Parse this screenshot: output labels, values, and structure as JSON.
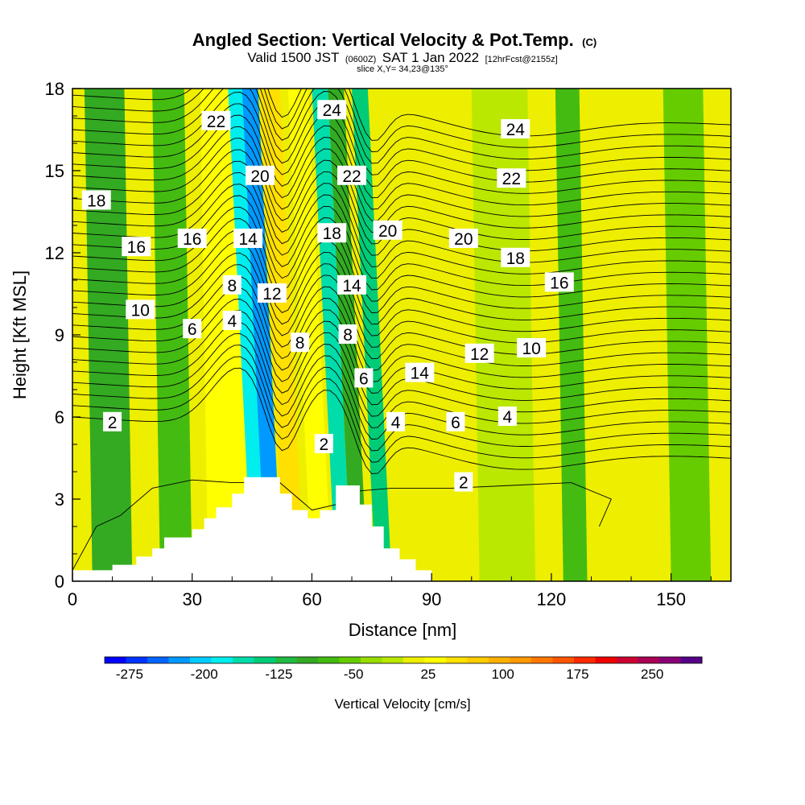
{
  "title": {
    "main": "Angled Section: Vertical Velocity & Pot.Temp.",
    "main_suffix": "(C)",
    "line2_a": "Valid 1500 JST",
    "line2_b": "(0600Z)",
    "line2_c": "SAT 1 Jan 2022",
    "line2_d": "[12hrFcst@2155z]",
    "line3": "slice X,Y= 34,23@135°"
  },
  "chart_data": {
    "type": "heatmap",
    "xlabel": "Distance [nm]",
    "ylabel": "Height [Kft MSL]",
    "xlim": [
      0,
      165
    ],
    "ylim": [
      0,
      18
    ],
    "x_ticks": [
      0,
      30,
      60,
      90,
      120,
      150
    ],
    "y_ticks": [
      0,
      3,
      6,
      9,
      12,
      15,
      18
    ],
    "colorbar": {
      "label": "Vertical Velocity [cm/s]",
      "tick_values": [
        -275,
        -200,
        -125,
        -50,
        25,
        100,
        175,
        250
      ],
      "tick_labels": [
        "-275",
        "-200",
        "-125",
        "-50",
        "25",
        "100",
        "175",
        "250"
      ],
      "range": [
        -300,
        275
      ],
      "step": 25,
      "colors": [
        "#0000ff",
        "#0033ff",
        "#0066ff",
        "#0099ff",
        "#00ccff",
        "#00eeee",
        "#00ddaa",
        "#00cc77",
        "#22bb44",
        "#33aa22",
        "#44bb11",
        "#66cc00",
        "#99dd00",
        "#bbe800",
        "#eeee00",
        "#ffff00",
        "#ffe000",
        "#ffcc00",
        "#ffb000",
        "#ff9900",
        "#ff7700",
        "#ff5500",
        "#ff2a00",
        "#ee0000",
        "#cc0033",
        "#aa0055",
        "#880077",
        "#550088"
      ]
    },
    "velocity_bands": [
      {
        "x": 5,
        "width": 10,
        "value": -60
      },
      {
        "x": 22,
        "width": 8,
        "value": -40
      },
      {
        "x": 34,
        "width": 10,
        "value": 80
      },
      {
        "x": 45,
        "width": 5,
        "value": -160
      },
      {
        "x": 48.5,
        "width": 4,
        "value": -220
      },
      {
        "x": 53,
        "width": 5,
        "value": 120
      },
      {
        "x": 60,
        "width": 5,
        "value": 90
      },
      {
        "x": 66,
        "width": 4,
        "value": -140
      },
      {
        "x": 70,
        "width": 4,
        "value": -60
      },
      {
        "x": 76,
        "width": 4,
        "value": -120
      },
      {
        "x": 84,
        "width": 8,
        "value": 70
      },
      {
        "x": 102,
        "width": 14,
        "value": 40
      },
      {
        "x": 123,
        "width": 6,
        "value": -50
      },
      {
        "x": 150,
        "width": 10,
        "value": -20
      }
    ],
    "terrain": [
      [
        0,
        0.4
      ],
      [
        10,
        0.4
      ],
      [
        10,
        0.6
      ],
      [
        16,
        0.6
      ],
      [
        16,
        0.9
      ],
      [
        20,
        0.9
      ],
      [
        20,
        1.2
      ],
      [
        23,
        1.2
      ],
      [
        23,
        1.6
      ],
      [
        30,
        1.6
      ],
      [
        30,
        1.9
      ],
      [
        33,
        1.9
      ],
      [
        33,
        2.3
      ],
      [
        36,
        2.3
      ],
      [
        36,
        2.7
      ],
      [
        40,
        2.7
      ],
      [
        40,
        3.2
      ],
      [
        43,
        3.2
      ],
      [
        43,
        3.8
      ],
      [
        52,
        3.8
      ],
      [
        52,
        3.2
      ],
      [
        55,
        3.2
      ],
      [
        55,
        2.6
      ],
      [
        59,
        2.6
      ],
      [
        59,
        2.3
      ],
      [
        62,
        2.3
      ],
      [
        62,
        2.6
      ],
      [
        66,
        2.6
      ],
      [
        66,
        3.5
      ],
      [
        72,
        3.5
      ],
      [
        72,
        2.8
      ],
      [
        75,
        2.8
      ],
      [
        75,
        2.0
      ],
      [
        78,
        2.0
      ],
      [
        78,
        1.2
      ],
      [
        82,
        1.2
      ],
      [
        82,
        0.8
      ],
      [
        86,
        0.8
      ],
      [
        86,
        0.4
      ],
      [
        90,
        0.4
      ],
      [
        90,
        0
      ]
    ],
    "contour_labels": [
      {
        "text": "2",
        "x": 10,
        "y": 5.8
      },
      {
        "text": "2",
        "x": 63,
        "y": 5.0
      },
      {
        "text": "2",
        "x": 98,
        "y": 3.6
      },
      {
        "text": "4",
        "x": 40,
        "y": 9.5
      },
      {
        "text": "4",
        "x": 81,
        "y": 5.8
      },
      {
        "text": "4",
        "x": 109,
        "y": 6.0
      },
      {
        "text": "6",
        "x": 30,
        "y": 9.2
      },
      {
        "text": "6",
        "x": 73,
        "y": 7.4
      },
      {
        "text": "6",
        "x": 96,
        "y": 5.8
      },
      {
        "text": "8",
        "x": 40,
        "y": 10.8
      },
      {
        "text": "8",
        "x": 57,
        "y": 8.7
      },
      {
        "text": "8",
        "x": 69,
        "y": 9.0
      },
      {
        "text": "10",
        "x": 17,
        "y": 9.9
      },
      {
        "text": "10",
        "x": 115,
        "y": 8.5
      },
      {
        "text": "12",
        "x": 50,
        "y": 10.5
      },
      {
        "text": "12",
        "x": 102,
        "y": 8.3
      },
      {
        "text": "14",
        "x": 44,
        "y": 12.5
      },
      {
        "text": "14",
        "x": 70,
        "y": 10.8
      },
      {
        "text": "14",
        "x": 87,
        "y": 7.6
      },
      {
        "text": "16",
        "x": 16,
        "y": 12.2
      },
      {
        "text": "16",
        "x": 30,
        "y": 12.5
      },
      {
        "text": "16",
        "x": 122,
        "y": 10.9
      },
      {
        "text": "18",
        "x": 6,
        "y": 13.9
      },
      {
        "text": "18",
        "x": 65,
        "y": 12.7
      },
      {
        "text": "18",
        "x": 111,
        "y": 11.8
      },
      {
        "text": "20",
        "x": 47,
        "y": 14.8
      },
      {
        "text": "20",
        "x": 79,
        "y": 12.8
      },
      {
        "text": "20",
        "x": 98,
        "y": 12.5
      },
      {
        "text": "22",
        "x": 36,
        "y": 16.8
      },
      {
        "text": "22",
        "x": 70,
        "y": 14.8
      },
      {
        "text": "22",
        "x": 110,
        "y": 14.7
      },
      {
        "text": "24",
        "x": 65,
        "y": 17.2
      },
      {
        "text": "24",
        "x": 111,
        "y": 16.5
      }
    ]
  }
}
